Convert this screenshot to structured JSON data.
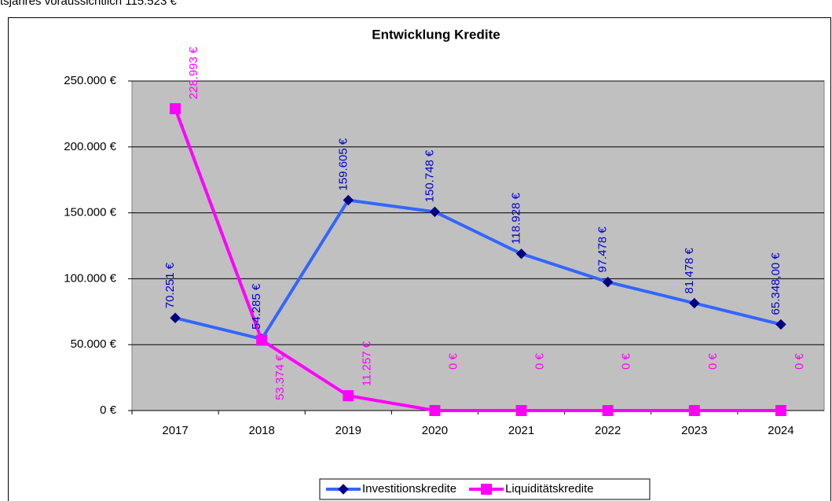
{
  "header_text": "tsjahres voraussichtlich 115.523 €",
  "chart_data": {
    "type": "line",
    "title": "Entwicklung Kredite",
    "categories": [
      "2017",
      "2018",
      "2019",
      "2020",
      "2021",
      "2022",
      "2023",
      "2024"
    ],
    "series": [
      {
        "name": "Investitionskredite",
        "color": "#3366ff",
        "marker_color": "#000080",
        "marker": "diamond",
        "values": [
          70251,
          54285,
          159605,
          150748,
          118928,
          97478,
          81478,
          65348
        ],
        "value_labels": [
          "70.251 €",
          "54.285 €",
          "159.605 €",
          "150.748 €",
          "118.928 €",
          "97.478 €",
          "81.478 €",
          "65.348,00 €"
        ]
      },
      {
        "name": "Liquiditätskredite",
        "color": "#ff00ff",
        "marker_color": "#ff00ff",
        "marker": "square",
        "values": [
          228993,
          53374,
          11257,
          0,
          0,
          0,
          0,
          0
        ],
        "value_labels": [
          "228.993 €",
          "53.374 €",
          "11.257 €",
          "0 €",
          "0 €",
          "0 €",
          "0 €",
          "0 €"
        ]
      }
    ],
    "ylim": [
      0,
      250000
    ],
    "yticks": [
      {
        "value": 0,
        "label": "0 €"
      },
      {
        "value": 50000,
        "label": "50.000 €"
      },
      {
        "value": 100000,
        "label": "100.000 €"
      },
      {
        "value": 150000,
        "label": "150.000 €"
      },
      {
        "value": 200000,
        "label": "200.000 €"
      },
      {
        "value": 250000,
        "label": "250.000 €"
      }
    ],
    "grid": true,
    "legend": "bottom"
  }
}
